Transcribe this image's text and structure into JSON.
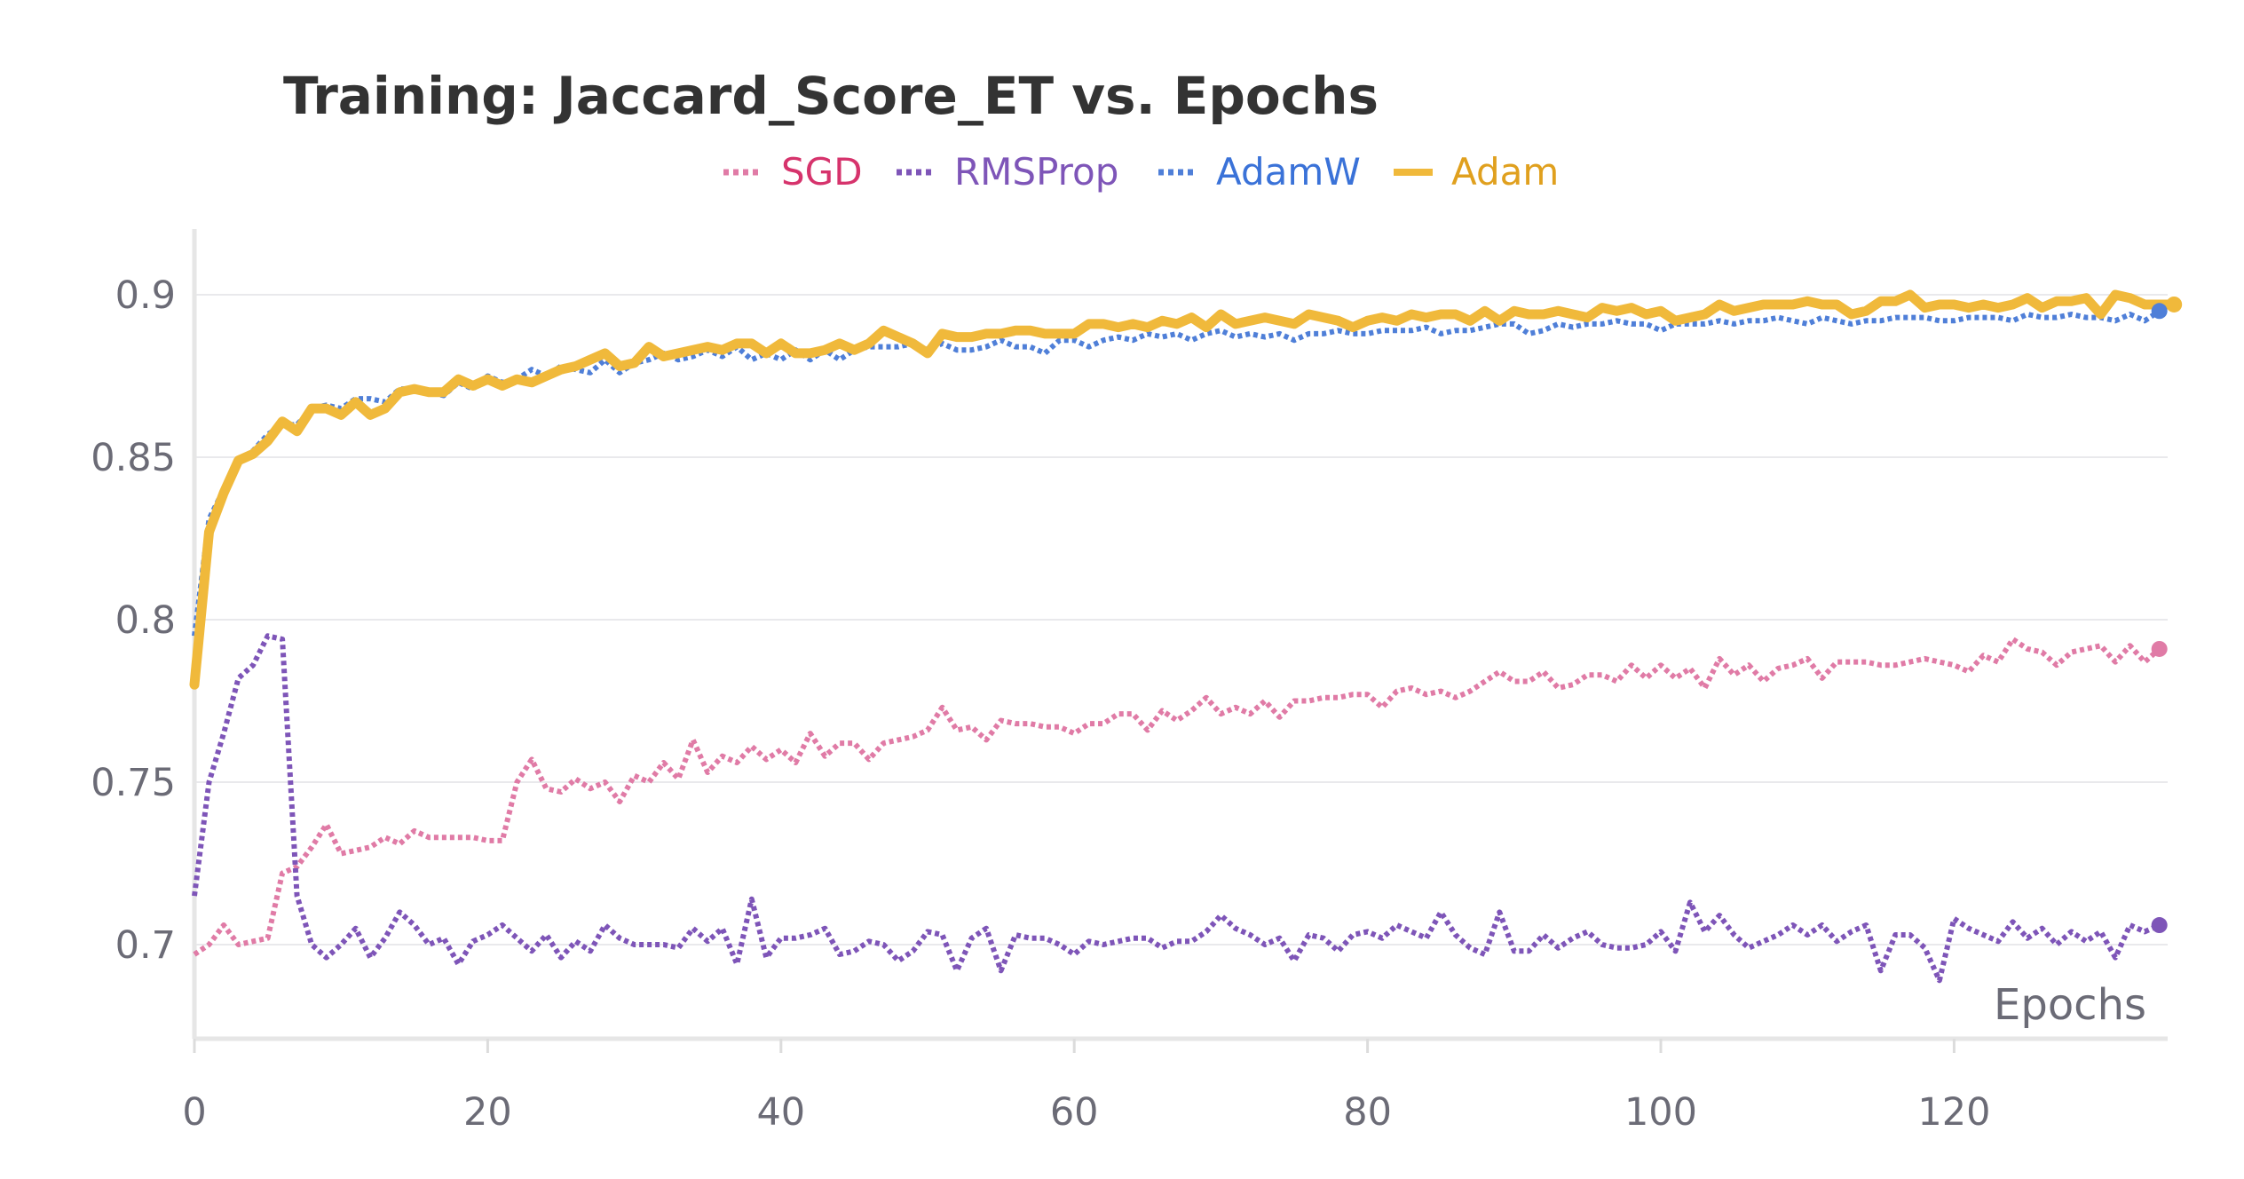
{
  "chart_data": {
    "type": "line",
    "title": "Training: Jaccard_Score_ET vs. Epochs",
    "xlabel": "Epochs",
    "ylabel": "",
    "xlim": [
      0,
      135
    ],
    "ylim": [
      0.67,
      0.93
    ],
    "xticks": [
      0,
      20,
      40,
      60,
      80,
      100,
      120
    ],
    "yticks": [
      0.7,
      0.75,
      0.8,
      0.85,
      0.9
    ],
    "grid": true,
    "legend": "top-center",
    "series": [
      {
        "name": "SGD",
        "color": "#e07ba6",
        "label_color": "#d6336c",
        "style": "dotted",
        "values": [
          0.697,
          0.7,
          0.706,
          0.7,
          0.701,
          0.702,
          0.722,
          0.724,
          0.73,
          0.737,
          0.728,
          0.729,
          0.73,
          0.733,
          0.731,
          0.735,
          0.733,
          0.733,
          0.733,
          0.733,
          0.732,
          0.732,
          0.75,
          0.757,
          0.748,
          0.747,
          0.751,
          0.748,
          0.75,
          0.744,
          0.752,
          0.75,
          0.756,
          0.751,
          0.763,
          0.753,
          0.758,
          0.756,
          0.761,
          0.757,
          0.76,
          0.756,
          0.765,
          0.758,
          0.762,
          0.762,
          0.757,
          0.762,
          0.763,
          0.764,
          0.766,
          0.773,
          0.766,
          0.767,
          0.763,
          0.769,
          0.768,
          0.768,
          0.767,
          0.767,
          0.765,
          0.768,
          0.768,
          0.771,
          0.771,
          0.766,
          0.772,
          0.769,
          0.772,
          0.776,
          0.771,
          0.773,
          0.771,
          0.775,
          0.77,
          0.775,
          0.775,
          0.776,
          0.776,
          0.777,
          0.777,
          0.773,
          0.778,
          0.779,
          0.777,
          0.778,
          0.776,
          0.778,
          0.781,
          0.784,
          0.781,
          0.781,
          0.784,
          0.779,
          0.78,
          0.783,
          0.783,
          0.781,
          0.786,
          0.782,
          0.786,
          0.782,
          0.785,
          0.779,
          0.788,
          0.783,
          0.786,
          0.781,
          0.785,
          0.786,
          0.788,
          0.782,
          0.787,
          0.787,
          0.787,
          0.786,
          0.786,
          0.787,
          0.788,
          0.787,
          0.786,
          0.784,
          0.789,
          0.787,
          0.794,
          0.791,
          0.79,
          0.786,
          0.79,
          0.791,
          0.792,
          0.787,
          0.792,
          0.787,
          0.791
        ]
      },
      {
        "name": "RMSProp",
        "color": "#7e55b8",
        "label_color": "#7e55b8",
        "style": "dotted",
        "values": [
          0.715,
          0.75,
          0.765,
          0.782,
          0.786,
          0.795,
          0.794,
          0.715,
          0.7,
          0.696,
          0.7,
          0.705,
          0.696,
          0.702,
          0.71,
          0.706,
          0.7,
          0.702,
          0.694,
          0.701,
          0.703,
          0.706,
          0.702,
          0.698,
          0.703,
          0.696,
          0.701,
          0.698,
          0.706,
          0.702,
          0.7,
          0.7,
          0.7,
          0.699,
          0.705,
          0.701,
          0.705,
          0.694,
          0.714,
          0.696,
          0.702,
          0.702,
          0.703,
          0.705,
          0.697,
          0.698,
          0.701,
          0.7,
          0.695,
          0.698,
          0.704,
          0.703,
          0.692,
          0.702,
          0.705,
          0.692,
          0.703,
          0.702,
          0.702,
          0.7,
          0.697,
          0.701,
          0.7,
          0.701,
          0.702,
          0.702,
          0.699,
          0.701,
          0.701,
          0.704,
          0.709,
          0.705,
          0.703,
          0.7,
          0.702,
          0.695,
          0.703,
          0.702,
          0.698,
          0.703,
          0.704,
          0.702,
          0.706,
          0.704,
          0.702,
          0.71,
          0.703,
          0.699,
          0.697,
          0.71,
          0.698,
          0.698,
          0.703,
          0.699,
          0.702,
          0.704,
          0.7,
          0.699,
          0.699,
          0.7,
          0.704,
          0.698,
          0.713,
          0.704,
          0.709,
          0.703,
          0.699,
          0.701,
          0.703,
          0.706,
          0.703,
          0.706,
          0.701,
          0.704,
          0.706,
          0.692,
          0.703,
          0.703,
          0.699,
          0.689,
          0.708,
          0.705,
          0.703,
          0.701,
          0.707,
          0.702,
          0.705,
          0.7,
          0.704,
          0.701,
          0.704,
          0.696,
          0.706,
          0.704,
          0.706
        ]
      },
      {
        "name": "AdamW",
        "color": "#4f7fd8",
        "label_color": "#3a72d8",
        "style": "dotted",
        "values": [
          0.795,
          0.831,
          0.84,
          0.849,
          0.852,
          0.857,
          0.86,
          0.86,
          0.865,
          0.866,
          0.865,
          0.868,
          0.868,
          0.867,
          0.871,
          0.871,
          0.87,
          0.869,
          0.873,
          0.871,
          0.875,
          0.873,
          0.874,
          0.877,
          0.875,
          0.878,
          0.877,
          0.876,
          0.88,
          0.876,
          0.879,
          0.88,
          0.882,
          0.88,
          0.881,
          0.883,
          0.881,
          0.884,
          0.88,
          0.882,
          0.88,
          0.883,
          0.88,
          0.883,
          0.88,
          0.883,
          0.884,
          0.884,
          0.884,
          0.885,
          0.883,
          0.885,
          0.883,
          0.883,
          0.884,
          0.886,
          0.884,
          0.884,
          0.882,
          0.886,
          0.886,
          0.884,
          0.886,
          0.887,
          0.886,
          0.888,
          0.887,
          0.888,
          0.886,
          0.888,
          0.889,
          0.887,
          0.888,
          0.887,
          0.888,
          0.886,
          0.888,
          0.888,
          0.889,
          0.888,
          0.888,
          0.889,
          0.889,
          0.889,
          0.89,
          0.888,
          0.889,
          0.889,
          0.89,
          0.891,
          0.891,
          0.888,
          0.889,
          0.891,
          0.89,
          0.891,
          0.891,
          0.892,
          0.891,
          0.891,
          0.889,
          0.891,
          0.891,
          0.891,
          0.892,
          0.891,
          0.892,
          0.892,
          0.893,
          0.892,
          0.891,
          0.893,
          0.892,
          0.891,
          0.892,
          0.892,
          0.893,
          0.893,
          0.893,
          0.892,
          0.892,
          0.893,
          0.893,
          0.893,
          0.892,
          0.894,
          0.893,
          0.893,
          0.894,
          0.893,
          0.893,
          0.892,
          0.894,
          0.892,
          0.895
        ]
      },
      {
        "name": "Adam",
        "color": "#f0b93b",
        "label_color": "#e0a01e",
        "style": "solid",
        "values": [
          0.78,
          0.827,
          0.839,
          0.849,
          0.851,
          0.855,
          0.861,
          0.858,
          0.865,
          0.865,
          0.863,
          0.867,
          0.863,
          0.865,
          0.87,
          0.871,
          0.87,
          0.87,
          0.874,
          0.872,
          0.874,
          0.872,
          0.874,
          0.873,
          0.875,
          0.877,
          0.878,
          0.88,
          0.882,
          0.878,
          0.879,
          0.884,
          0.881,
          0.882,
          0.883,
          0.884,
          0.883,
          0.885,
          0.885,
          0.882,
          0.885,
          0.882,
          0.882,
          0.883,
          0.885,
          0.883,
          0.885,
          0.889,
          0.887,
          0.885,
          0.882,
          0.888,
          0.887,
          0.887,
          0.888,
          0.888,
          0.889,
          0.889,
          0.888,
          0.888,
          0.888,
          0.891,
          0.891,
          0.89,
          0.891,
          0.89,
          0.892,
          0.891,
          0.893,
          0.89,
          0.894,
          0.891,
          0.892,
          0.893,
          0.892,
          0.891,
          0.894,
          0.893,
          0.892,
          0.89,
          0.892,
          0.893,
          0.892,
          0.894,
          0.893,
          0.894,
          0.894,
          0.892,
          0.895,
          0.892,
          0.895,
          0.894,
          0.894,
          0.895,
          0.894,
          0.893,
          0.896,
          0.895,
          0.896,
          0.894,
          0.895,
          0.892,
          0.893,
          0.894,
          0.897,
          0.895,
          0.896,
          0.897,
          0.897,
          0.897,
          0.898,
          0.897,
          0.897,
          0.894,
          0.895,
          0.898,
          0.898,
          0.9,
          0.896,
          0.897,
          0.897,
          0.896,
          0.897,
          0.896,
          0.897,
          0.899,
          0.896,
          0.898,
          0.898,
          0.899,
          0.894,
          0.9,
          0.899,
          0.897,
          0.897,
          0.897
        ]
      }
    ]
  }
}
